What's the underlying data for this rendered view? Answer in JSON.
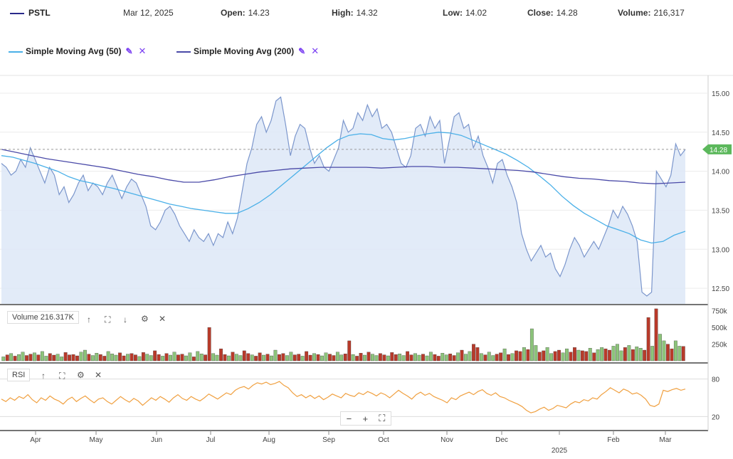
{
  "header": {
    "ticker": "PSTL",
    "date": "Mar 12, 2025",
    "open_label": "Open:",
    "open": "14.23",
    "high_label": "High:",
    "high": "14.32",
    "low_label": "Low:",
    "low": "14.02",
    "close_label": "Close:",
    "close": "14.28",
    "volume_label": "Volume:",
    "volume": "216,317"
  },
  "legend": {
    "sma50": "Simple Moving Avg (50)",
    "sma200": "Simple Moving Avg (200)"
  },
  "panes": {
    "volume_label": "Volume 216.317K",
    "rsi_label": "RSI"
  },
  "colors": {
    "price_line": "#7b96cc",
    "price_fill": "#dde7f7",
    "sma50": "#4ab0e8",
    "sma200": "#4a4aa8",
    "vol_up": "#8cc47a",
    "vol_down": "#b83a2a",
    "rsi": "#f0a040",
    "last_price_tag": "#5cb85c",
    "accent": "#7a3ff2"
  },
  "icons": {
    "edit": "pencil-icon",
    "remove": "close-icon",
    "up": "arrow-up-icon",
    "down": "arrow-down-icon",
    "expand": "expand-icon",
    "settings": "gear-icon",
    "zoom_out": "minus-icon",
    "zoom_in": "plus-icon",
    "fit": "fit-icon"
  },
  "chart_data": [
    {
      "type": "area",
      "title": "",
      "x_ticks": [
        "Apr",
        "May",
        "Jun",
        "Jul",
        "Aug",
        "Sep",
        "Oct",
        "Nov",
        "Dec",
        "Feb",
        "Mar"
      ],
      "x_year_label": "2025",
      "y_ticks": [
        "15.00",
        "14.50",
        "14.00",
        "13.50",
        "13.00",
        "12.50"
      ],
      "ylim": [
        12.3,
        15.1
      ],
      "last_price": "14.28",
      "grid": true,
      "series": [
        {
          "name": "",
          "role": "price",
          "values": [
            14.1,
            14.05,
            13.95,
            14.0,
            14.15,
            14.05,
            14.3,
            14.15,
            14.0,
            13.85,
            14.05,
            13.95,
            13.7,
            13.8,
            13.6,
            13.7,
            13.85,
            13.95,
            13.75,
            13.85,
            13.8,
            13.7,
            13.85,
            13.95,
            13.8,
            13.65,
            13.8,
            13.9,
            13.85,
            13.7,
            13.55,
            13.3,
            13.25,
            13.35,
            13.5,
            13.55,
            13.45,
            13.3,
            13.2,
            13.1,
            13.25,
            13.15,
            13.1,
            13.2,
            13.05,
            13.2,
            13.15,
            13.35,
            13.2,
            13.4,
            13.75,
            14.1,
            14.3,
            14.6,
            14.7,
            14.5,
            14.65,
            14.9,
            14.95,
            14.6,
            14.2,
            14.45,
            14.6,
            14.55,
            14.3,
            14.1,
            14.2,
            14.05,
            14.0,
            14.15,
            14.3,
            14.65,
            14.5,
            14.55,
            14.75,
            14.65,
            14.85,
            14.7,
            14.8,
            14.55,
            14.6,
            14.5,
            14.3,
            14.1,
            14.05,
            14.2,
            14.55,
            14.6,
            14.45,
            14.7,
            14.55,
            14.65,
            14.1,
            14.4,
            14.7,
            14.75,
            14.55,
            14.6,
            14.3,
            14.45,
            14.2,
            14.05,
            13.85,
            14.1,
            14.15,
            13.95,
            13.8,
            13.6,
            13.2,
            13.0,
            12.85,
            12.95,
            13.05,
            12.9,
            12.95,
            12.75,
            12.65,
            12.8,
            13.0,
            13.15,
            13.05,
            12.9,
            13.0,
            13.1,
            13.0,
            13.15,
            13.3,
            13.5,
            13.4,
            13.55,
            13.45,
            13.3,
            13.1,
            12.45,
            12.4,
            12.45,
            14.0,
            13.9,
            13.8,
            13.95,
            14.35,
            14.2,
            14.28
          ]
        },
        {
          "name": "Simple Moving Avg (50)",
          "role": "sma50",
          "values": [
            14.2,
            14.18,
            14.14,
            14.1,
            14.05,
            14.0,
            13.93,
            13.88,
            13.85,
            13.81,
            13.78,
            13.74,
            13.7,
            13.66,
            13.62,
            13.58,
            13.55,
            13.52,
            13.5,
            13.48,
            13.46,
            13.46,
            13.52,
            13.6,
            13.7,
            13.82,
            13.94,
            14.06,
            14.18,
            14.3,
            14.4,
            14.46,
            14.48,
            14.47,
            14.42,
            14.4,
            14.42,
            14.45,
            14.48,
            14.5,
            14.49,
            14.46,
            14.4,
            14.34,
            14.28,
            14.22,
            14.14,
            14.05,
            13.94,
            13.82,
            13.68,
            13.56,
            13.46,
            13.38,
            13.3,
            13.25,
            13.2,
            13.12,
            13.08,
            13.1,
            13.18,
            13.23
          ]
        },
        {
          "name": "Simple Moving Avg (200)",
          "role": "sma200",
          "values": [
            14.28,
            14.24,
            14.2,
            14.16,
            14.13,
            14.1,
            14.07,
            14.04,
            14.0,
            13.96,
            13.93,
            13.89,
            13.86,
            13.86,
            13.89,
            13.93,
            13.96,
            13.99,
            14.01,
            14.03,
            14.04,
            14.05,
            14.05,
            14.05,
            14.05,
            14.04,
            14.05,
            14.06,
            14.06,
            14.05,
            14.05,
            14.04,
            14.03,
            14.02,
            14.01,
            13.99,
            13.96,
            13.93,
            13.91,
            13.9,
            13.88,
            13.87,
            13.85,
            13.84,
            13.85,
            13.86
          ]
        }
      ]
    },
    {
      "type": "bar",
      "title": "",
      "y_ticks": [
        "750k",
        "500k",
        "250k"
      ],
      "ylim": [
        0,
        800000
      ],
      "values": [
        60000,
        90000,
        110000,
        70000,
        95000,
        130000,
        80000,
        100000,
        120000,
        90000,
        140000,
        70000,
        110000,
        85000,
        100000,
        60000,
        125000,
        90000,
        95000,
        75000,
        130000,
        160000,
        100000,
        80000,
        115000,
        95000,
        70000,
        140000,
        105000,
        85000,
        120000,
        75000,
        100000,
        110000,
        90000,
        65000,
        125000,
        100000,
        80000,
        150000,
        95000,
        70000,
        110000,
        85000,
        130000,
        90000,
        100000,
        75000,
        120000,
        60000,
        140000,
        105000,
        90000,
        500000,
        110000,
        85000,
        180000,
        95000,
        75000,
        130000,
        100000,
        80000,
        150000,
        110000,
        90000,
        70000,
        120000,
        85000,
        100000,
        75000,
        160000,
        95000,
        110000,
        80000,
        130000,
        90000,
        100000,
        70000,
        140000,
        85000,
        110000,
        95000,
        75000,
        120000,
        100000,
        80000,
        130000,
        90000,
        105000,
        300000,
        95000,
        70000,
        115000,
        85000,
        130000,
        100000,
        80000,
        110000,
        90000,
        75000,
        125000,
        95000,
        105000,
        80000,
        140000,
        90000,
        110000,
        85000,
        100000,
        75000,
        130000,
        95000,
        70000,
        115000,
        90000,
        105000,
        80000,
        120000,
        160000,
        100000,
        140000,
        250000,
        200000,
        110000,
        90000,
        130000,
        80000,
        100000,
        120000,
        180000,
        95000,
        110000,
        150000,
        140000,
        200000,
        170000,
        480000,
        230000,
        130000,
        150000,
        200000,
        110000,
        140000,
        160000,
        120000,
        180000,
        130000,
        200000,
        160000,
        150000,
        140000,
        190000,
        120000,
        170000,
        200000,
        180000,
        160000,
        220000,
        250000,
        150000,
        200000,
        230000,
        170000,
        210000,
        190000,
        160000,
        650000,
        220000,
        780000,
        400000,
        300000,
        250000,
        180000,
        300000,
        220000,
        216317
      ],
      "directions": "ududuudduduudduudddduuduudduuuddudduduudduduudduuduudduudduduuddudduduudduuddudduduudduuddudduduuddudduudduuduudduudduduudduduuddududduduudduudduuddudduduudduu"
    },
    {
      "type": "line",
      "title": "",
      "y_ticks": [
        "80",
        "20"
      ],
      "ylim": [
        0,
        100
      ],
      "series": [
        {
          "name": "RSI",
          "values": [
            48,
            44,
            50,
            46,
            52,
            49,
            55,
            47,
            42,
            50,
            46,
            53,
            48,
            45,
            40,
            47,
            51,
            44,
            49,
            53,
            47,
            42,
            48,
            50,
            44,
            40,
            46,
            52,
            47,
            43,
            49,
            45,
            38,
            44,
            50,
            46,
            52,
            48,
            43,
            50,
            55,
            49,
            46,
            52,
            48,
            45,
            50,
            56,
            52,
            48,
            53,
            58,
            55,
            62,
            66,
            68,
            64,
            70,
            74,
            72,
            75,
            71,
            73,
            76,
            70,
            66,
            58,
            52,
            55,
            50,
            54,
            49,
            53,
            47,
            51,
            56,
            53,
            50,
            57,
            54,
            52,
            58,
            55,
            60,
            57,
            53,
            58,
            55,
            50,
            56,
            62,
            57,
            53,
            48,
            55,
            59,
            54,
            57,
            52,
            49,
            46,
            42,
            50,
            47,
            53,
            56,
            59,
            55,
            60,
            63,
            57,
            54,
            58,
            52,
            50,
            46,
            43,
            40,
            36,
            30,
            26,
            28,
            32,
            35,
            30,
            33,
            38,
            36,
            34,
            40,
            44,
            42,
            47,
            45,
            50,
            48,
            55,
            60,
            66,
            62,
            58,
            64,
            61,
            56,
            58,
            54,
            48,
            38,
            36,
            40,
            62,
            60,
            63,
            65,
            62,
            64
          ]
        }
      ]
    }
  ]
}
